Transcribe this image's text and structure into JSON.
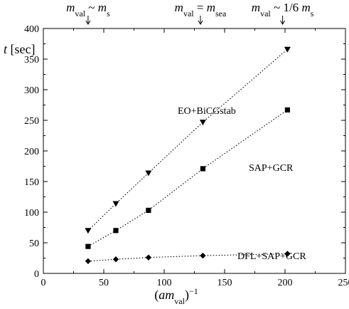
{
  "chart_data": {
    "type": "line",
    "title": "",
    "xlabel": "(am_val)^-1",
    "ylabel": "t [sec]",
    "xlim": [
      0,
      250
    ],
    "ylim": [
      0,
      400
    ],
    "x_ticks": [
      0,
      50,
      100,
      150,
      200,
      250
    ],
    "y_ticks": [
      0,
      50,
      100,
      150,
      200,
      250,
      300,
      350,
      400
    ],
    "grid": false,
    "line_style": "dotted",
    "x": [
      37,
      60,
      87,
      132,
      202
    ],
    "series": [
      {
        "name": "EO+BiCGstab",
        "marker": "triangle-down",
        "values": [
          70,
          114,
          164,
          247,
          366
        ]
      },
      {
        "name": "SAP+GCR",
        "marker": "square",
        "values": [
          44,
          70,
          103,
          171,
          267
        ]
      },
      {
        "name": "DFL+SAP+GCR",
        "marker": "diamond",
        "values": [
          20,
          23,
          26,
          29,
          32
        ]
      }
    ],
    "top_annotations": [
      {
        "x": 37,
        "text": "m_val ~ m_s"
      },
      {
        "x": 130,
        "text": "m_val = m_sea"
      },
      {
        "x": 198,
        "text": "m_val ~ 1/6 m_s"
      }
    ],
    "colors": {
      "marks": "#000000"
    }
  }
}
